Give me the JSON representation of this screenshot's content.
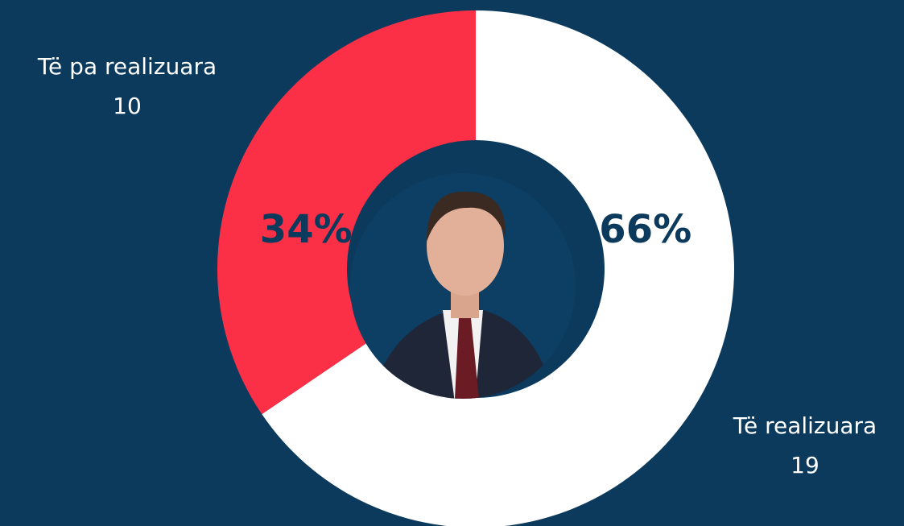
{
  "chart_data": {
    "type": "donut",
    "categories": [
      "Të realizuara",
      "Të pa realizuara"
    ],
    "values": [
      19,
      10
    ],
    "colors": [
      "#ffffff",
      "#fb3046"
    ],
    "percentages": [
      66,
      34
    ],
    "percentage_labels": [
      "66%",
      "34%"
    ]
  }
}
